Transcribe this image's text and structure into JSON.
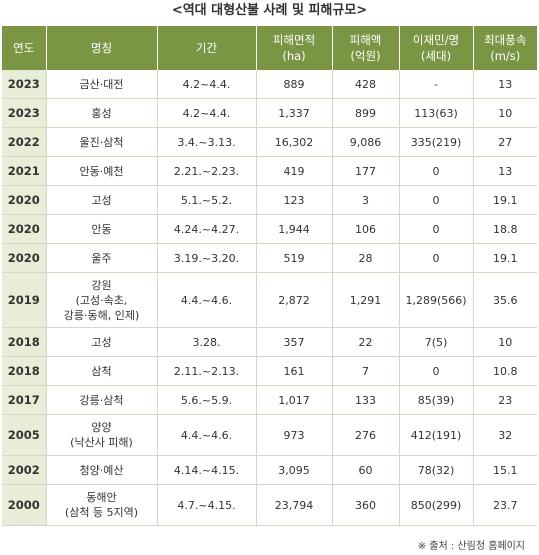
{
  "title": "<역대 대형산불 사례 및 피해규모>",
  "headers": [
    "연도",
    "명칭",
    "기간",
    "피해면적\n(ha)",
    "피해액\n(억원)",
    "이재민/명\n(세대)",
    "최대풍속\n(m/s)"
  ],
  "rows": [
    [
      "2023",
      "금산·대전",
      "4.2~4.4.",
      "889",
      "428",
      "-",
      "13"
    ],
    [
      "2023",
      "홍성",
      "4.2~4.4.",
      "1,337",
      "899",
      "113(63)",
      "10"
    ],
    [
      "2022",
      "울진·삼척",
      "3.4.~3.13.",
      "16,302",
      "9,086",
      "335(219)",
      "27"
    ],
    [
      "2021",
      "안동·예천",
      "2.21.~2.23.",
      "419",
      "177",
      "0",
      "13"
    ],
    [
      "2020",
      "고성",
      "5.1.~5.2.",
      "123",
      "3",
      "0",
      "19.1"
    ],
    [
      "2020",
      "안동",
      "4.24.~4.27.",
      "1,944",
      "106",
      "0",
      "18.8"
    ],
    [
      "2020",
      "울주",
      "3.19.~3.20.",
      "519",
      "28",
      "0",
      "19.1"
    ],
    [
      "2019",
      "강원\n(고성·속초,\n강릉·동해, 인제)",
      "4.4.~4.6.",
      "2,872",
      "1,291",
      "1,289(566)",
      "35.6"
    ],
    [
      "2018",
      "고성",
      "3.28.",
      "357",
      "22",
      "7(5)",
      "10"
    ],
    [
      "2018",
      "삼척",
      "2.11.~2.13.",
      "161",
      "7",
      "0",
      "10.8"
    ],
    [
      "2017",
      "강릉·삼척",
      "5.6.~5.9.",
      "1,017",
      "133",
      "85(39)",
      "23"
    ],
    [
      "2005",
      "양양\n(낙산사 피해)",
      "4.4.~4.6.",
      "973",
      "276",
      "412(191)",
      "32"
    ],
    [
      "2002",
      "청양·예산",
      "4.14.~4.15.",
      "3,095",
      "60",
      "78(32)",
      "15.1"
    ],
    [
      "2000",
      "동해안\n(삼척 등 5지역)",
      "4.7.~4.15.",
      "23,794",
      "360",
      "850(299)",
      "23.7"
    ]
  ],
  "source": "※ 출처 : 산림청 홈페이지",
  "colors": {
    "header_bg": "#7a9644",
    "year_bg": "#e8edd8",
    "border": "#d4d9c6"
  }
}
